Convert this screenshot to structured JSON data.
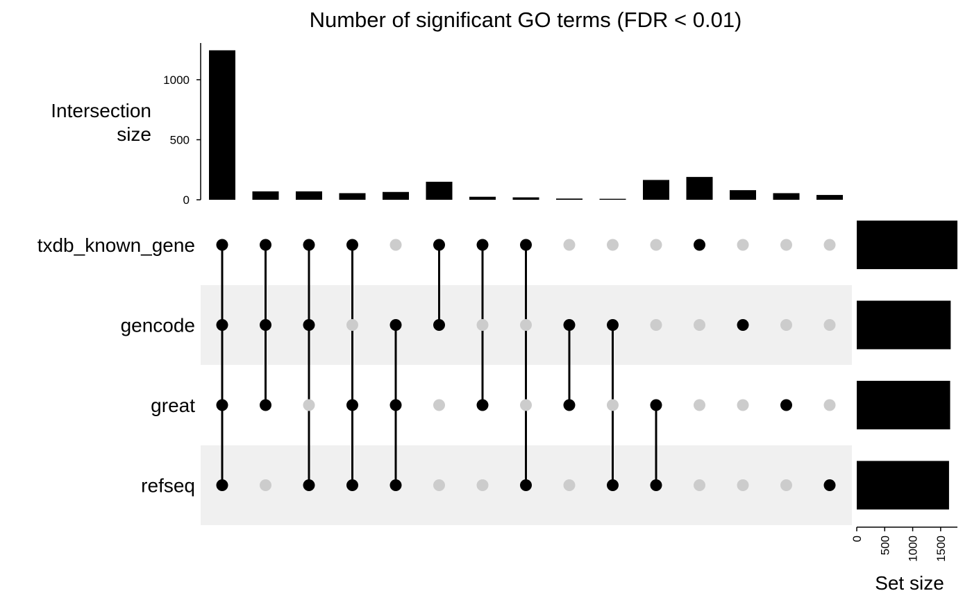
{
  "chart_data": {
    "type": "upset",
    "title": "Number of significant GO terms (FDR < 0.01)",
    "intersection_axis_label": [
      "Intersection",
      "size"
    ],
    "intersection_ylim": [
      0,
      1300
    ],
    "intersection_ticks": [
      0,
      500,
      1000
    ],
    "sets": [
      "txdb_known_gene",
      "gencode",
      "great",
      "refseq"
    ],
    "set_sizes": [
      1800,
      1680,
      1670,
      1650
    ],
    "set_size_axis_label": "Set size",
    "set_size_xlim": [
      0,
      1800
    ],
    "set_size_ticks": [
      0,
      500,
      1000,
      1500
    ],
    "intersections": [
      {
        "sets": [
          "txdb_known_gene",
          "gencode",
          "great",
          "refseq"
        ],
        "size": 1245
      },
      {
        "sets": [
          "txdb_known_gene",
          "gencode",
          "great"
        ],
        "size": 70
      },
      {
        "sets": [
          "txdb_known_gene",
          "gencode",
          "refseq"
        ],
        "size": 70
      },
      {
        "sets": [
          "txdb_known_gene",
          "great",
          "refseq"
        ],
        "size": 55
      },
      {
        "sets": [
          "gencode",
          "great",
          "refseq"
        ],
        "size": 65
      },
      {
        "sets": [
          "txdb_known_gene",
          "gencode"
        ],
        "size": 150
      },
      {
        "sets": [
          "txdb_known_gene",
          "great"
        ],
        "size": 25
      },
      {
        "sets": [
          "txdb_known_gene",
          "refseq"
        ],
        "size": 20
      },
      {
        "sets": [
          "gencode",
          "great"
        ],
        "size": 10
      },
      {
        "sets": [
          "gencode",
          "refseq"
        ],
        "size": 8
      },
      {
        "sets": [
          "great",
          "refseq"
        ],
        "size": 165
      },
      {
        "sets": [
          "txdb_known_gene"
        ],
        "size": 190
      },
      {
        "sets": [
          "gencode"
        ],
        "size": 80
      },
      {
        "sets": [
          "great"
        ],
        "size": 55
      },
      {
        "sets": [
          "refseq"
        ],
        "size": 40
      }
    ],
    "colors": {
      "bar": "#000000",
      "dot_active": "#000000",
      "dot_inactive": "#cccccc",
      "stripe": "#f0f0f0"
    }
  }
}
